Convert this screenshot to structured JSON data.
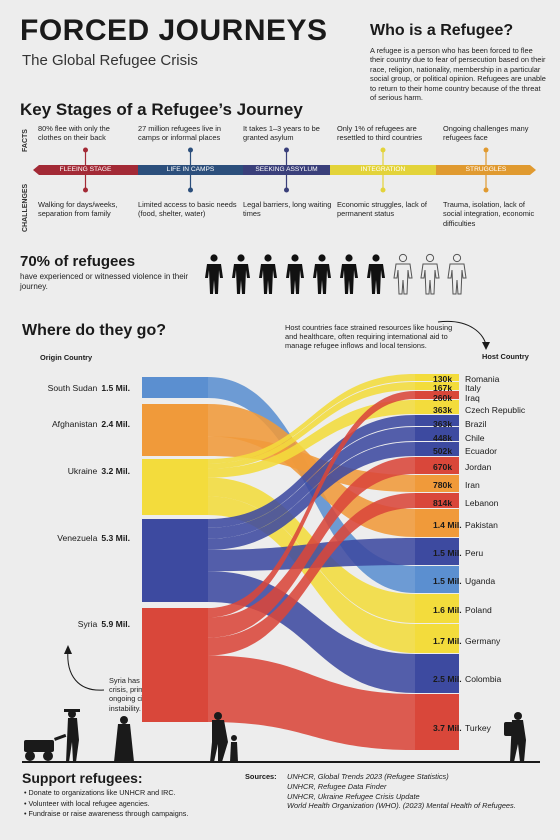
{
  "header": {
    "title": "FORCED JOURNEYS",
    "subtitle": "The Global Refugee Crisis"
  },
  "who": {
    "heading": "Who is a Refugee?",
    "text": "A refugee is a person who has been forced to flee their country due to fear of persecution based on their race, religion, nationality, membership in a particular social group, or political opinion. Refugees are unable to return to their home country because of the threat of serious harm."
  },
  "stages": {
    "heading": "Key Stages of a Refugee’s Journey",
    "facts_label": "FACTS",
    "challenges_label": "CHALLENGES",
    "items": [
      {
        "name": "FLEEING STAGE",
        "color": "#a32a36",
        "fact": "80% flee with only the clothes on their back",
        "challenge": "Walking for days/weeks, separation from family"
      },
      {
        "name": "LIFE IN CAMPS",
        "color": "#2c4f7c",
        "fact": "27 million refugees live in camps or informal places",
        "challenge": "Limited access to basic needs (food, shelter, water)"
      },
      {
        "name": "SEEKING ASSYLUM",
        "color": "#3a3f7a",
        "fact": "It takes 1–3 years to be granted asylum",
        "challenge": "Legal barriers, long waiting times"
      },
      {
        "name": "INTEGRATION",
        "color": "#e3d33a",
        "fact": "Only 1% of refugees are resettled to third countries",
        "challenge": "Economic struggles, lack of permanent status"
      },
      {
        "name": "STRUGGLES",
        "color": "#e09a30",
        "fact": "Ongoing challenges many refugees face",
        "challenge": "Trauma, isolation, lack of social integration, economic difficulties"
      }
    ]
  },
  "violence": {
    "stat": "70% of refugees",
    "rest": "have experienced or witnessed violence in their journey.",
    "filled": 7,
    "total": 10
  },
  "flows": {
    "heading": "Where do they go?",
    "origin_header": "Origin Country",
    "host_header": "Host Country",
    "host_note": "Host countries face strained resources like housing and healthcare, often requiring international aid to manage refugee inflows and local tensions.",
    "syria_note": "Syria has the largest refugee crisis, primarily caused by ongoing civil war and instability.",
    "origins": [
      {
        "name": "South Sudan",
        "value": "1.5 Mil.",
        "color": "#5b8fd0"
      },
      {
        "name": "Afghanistan",
        "value": "2.4 Mil.",
        "color": "#f09a3a"
      },
      {
        "name": "Ukraine",
        "value": "3.2 Mil.",
        "color": "#f3dc3c"
      },
      {
        "name": "Venezuela",
        "value": "5.3 Mil.",
        "color": "#3d4aa0"
      },
      {
        "name": "Syria",
        "value": "5.9 Mil.",
        "color": "#d9473a"
      }
    ],
    "hosts": [
      {
        "name": "Romania",
        "value": "130k",
        "color": "#f3dc3c"
      },
      {
        "name": "Italy",
        "value": "167k",
        "color": "#f3dc3c"
      },
      {
        "name": "Iraq",
        "value": "260k",
        "color": "#d9473a"
      },
      {
        "name": "Czech Republic",
        "value": "363k",
        "color": "#f3dc3c"
      },
      {
        "name": "Brazil",
        "value": "363k",
        "color": "#3d4aa0"
      },
      {
        "name": "Chile",
        "value": "448k",
        "color": "#3d4aa0"
      },
      {
        "name": "Ecuador",
        "value": "502k",
        "color": "#3d4aa0"
      },
      {
        "name": "Jordan",
        "value": "670k",
        "color": "#d9473a"
      },
      {
        "name": "Iran",
        "value": "780k",
        "color": "#f09a3a"
      },
      {
        "name": "Lebanon",
        "value": "814k",
        "color": "#d9473a"
      },
      {
        "name": "Pakistan",
        "value": "1.4 Mil.",
        "color": "#f09a3a"
      },
      {
        "name": "Peru",
        "value": "1.5 Mil.",
        "color": "#3d4aa0"
      },
      {
        "name": "Uganda",
        "value": "1.5 Mil.",
        "color": "#5b8fd0"
      },
      {
        "name": "Poland",
        "value": "1.6 Mil.",
        "color": "#f3dc3c"
      },
      {
        "name": "Germany",
        "value": "1.7 Mil.",
        "color": "#f3dc3c"
      },
      {
        "name": "Colombia",
        "value": "2.5 Mil.",
        "color": "#3d4aa0"
      },
      {
        "name": "Turkey",
        "value": "3.7 Mil.",
        "color": "#d9473a"
      }
    ]
  },
  "support": {
    "heading": "Support refugees:",
    "items": [
      "Donate to organizations like UNHCR and IRC.",
      "Volunteer with local refugee agencies.",
      "Fundraise or raise awareness through campaigns."
    ]
  },
  "sources": {
    "label": "Sources:",
    "items": [
      "UNHCR, Global Trends 2023 (Refugee Statistics)",
      "UNHCR, Refugee Data Finder",
      "UNHCR, Ukraine Refugee Crisis Update",
      "World Health Organization (WHO). (2023) Mental Health of Refugees."
    ]
  }
}
